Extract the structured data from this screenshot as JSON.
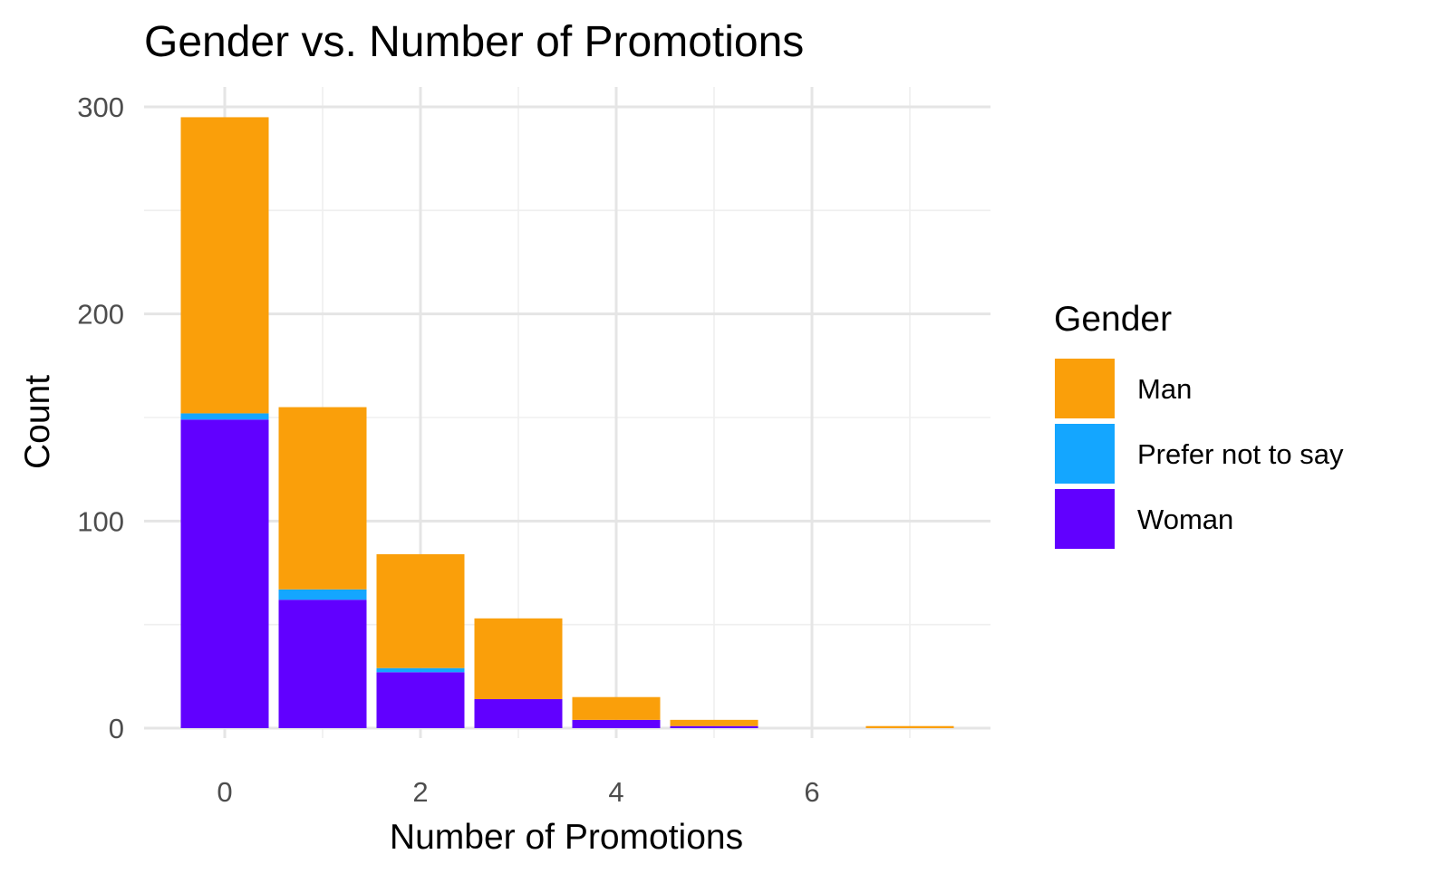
{
  "chart_data": {
    "type": "bar",
    "stacked": true,
    "title": "Gender vs. Number of Promotions",
    "xlabel": "Number of Promotions",
    "ylabel": "Count",
    "x": [
      0,
      1,
      2,
      3,
      4,
      5,
      7
    ],
    "xlim": [
      -0.5,
      7.5
    ],
    "ylim": [
      0,
      300
    ],
    "x_ticks": [
      0,
      2,
      4,
      6
    ],
    "y_ticks": [
      0,
      100,
      200,
      300
    ],
    "grid": true,
    "legend": {
      "title": "Gender",
      "placement": "right"
    },
    "series": [
      {
        "name": "Woman",
        "color": "#6100ff",
        "values": [
          149,
          62,
          27,
          14,
          4,
          1,
          0
        ]
      },
      {
        "name": "Prefer not to say",
        "color": "#14a6ff",
        "values": [
          3,
          5,
          2,
          0,
          0,
          0,
          0
        ]
      },
      {
        "name": "Man",
        "color": "#fa9f0a",
        "values": [
          143,
          88,
          55,
          39,
          11,
          3,
          1
        ]
      }
    ],
    "legend_order": [
      "Man",
      "Prefer not to say",
      "Woman"
    ]
  }
}
